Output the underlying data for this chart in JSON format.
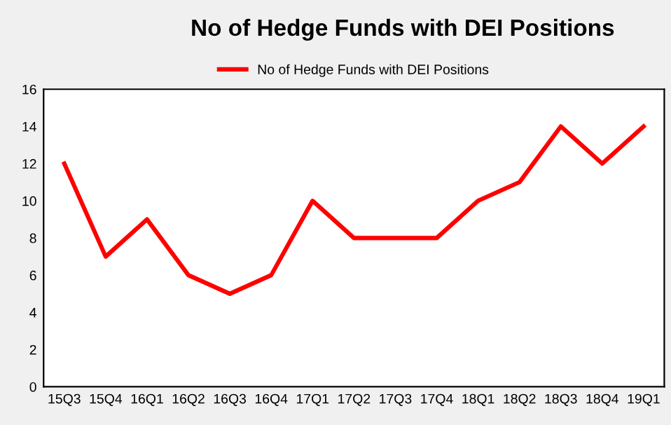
{
  "chart_data": {
    "type": "line",
    "title": "No of Hedge Funds with DEI Positions",
    "categories": [
      "15Q3",
      "15Q4",
      "16Q1",
      "16Q2",
      "16Q3",
      "16Q4",
      "17Q1",
      "17Q2",
      "17Q3",
      "17Q4",
      "18Q1",
      "18Q2",
      "18Q3",
      "18Q4",
      "19Q1"
    ],
    "series": [
      {
        "name": "No of Hedge Funds with DEI Positions",
        "color": "#ff0000",
        "values": [
          12,
          7,
          9,
          6,
          5,
          6,
          10,
          8,
          8,
          8,
          10,
          11,
          14,
          12,
          14
        ]
      }
    ],
    "ylim": [
      0,
      16
    ],
    "yticks": [
      0,
      2,
      4,
      6,
      8,
      10,
      12,
      14,
      16
    ],
    "grid": false,
    "legend": "top",
    "marker": "none",
    "line_style": "solid"
  }
}
